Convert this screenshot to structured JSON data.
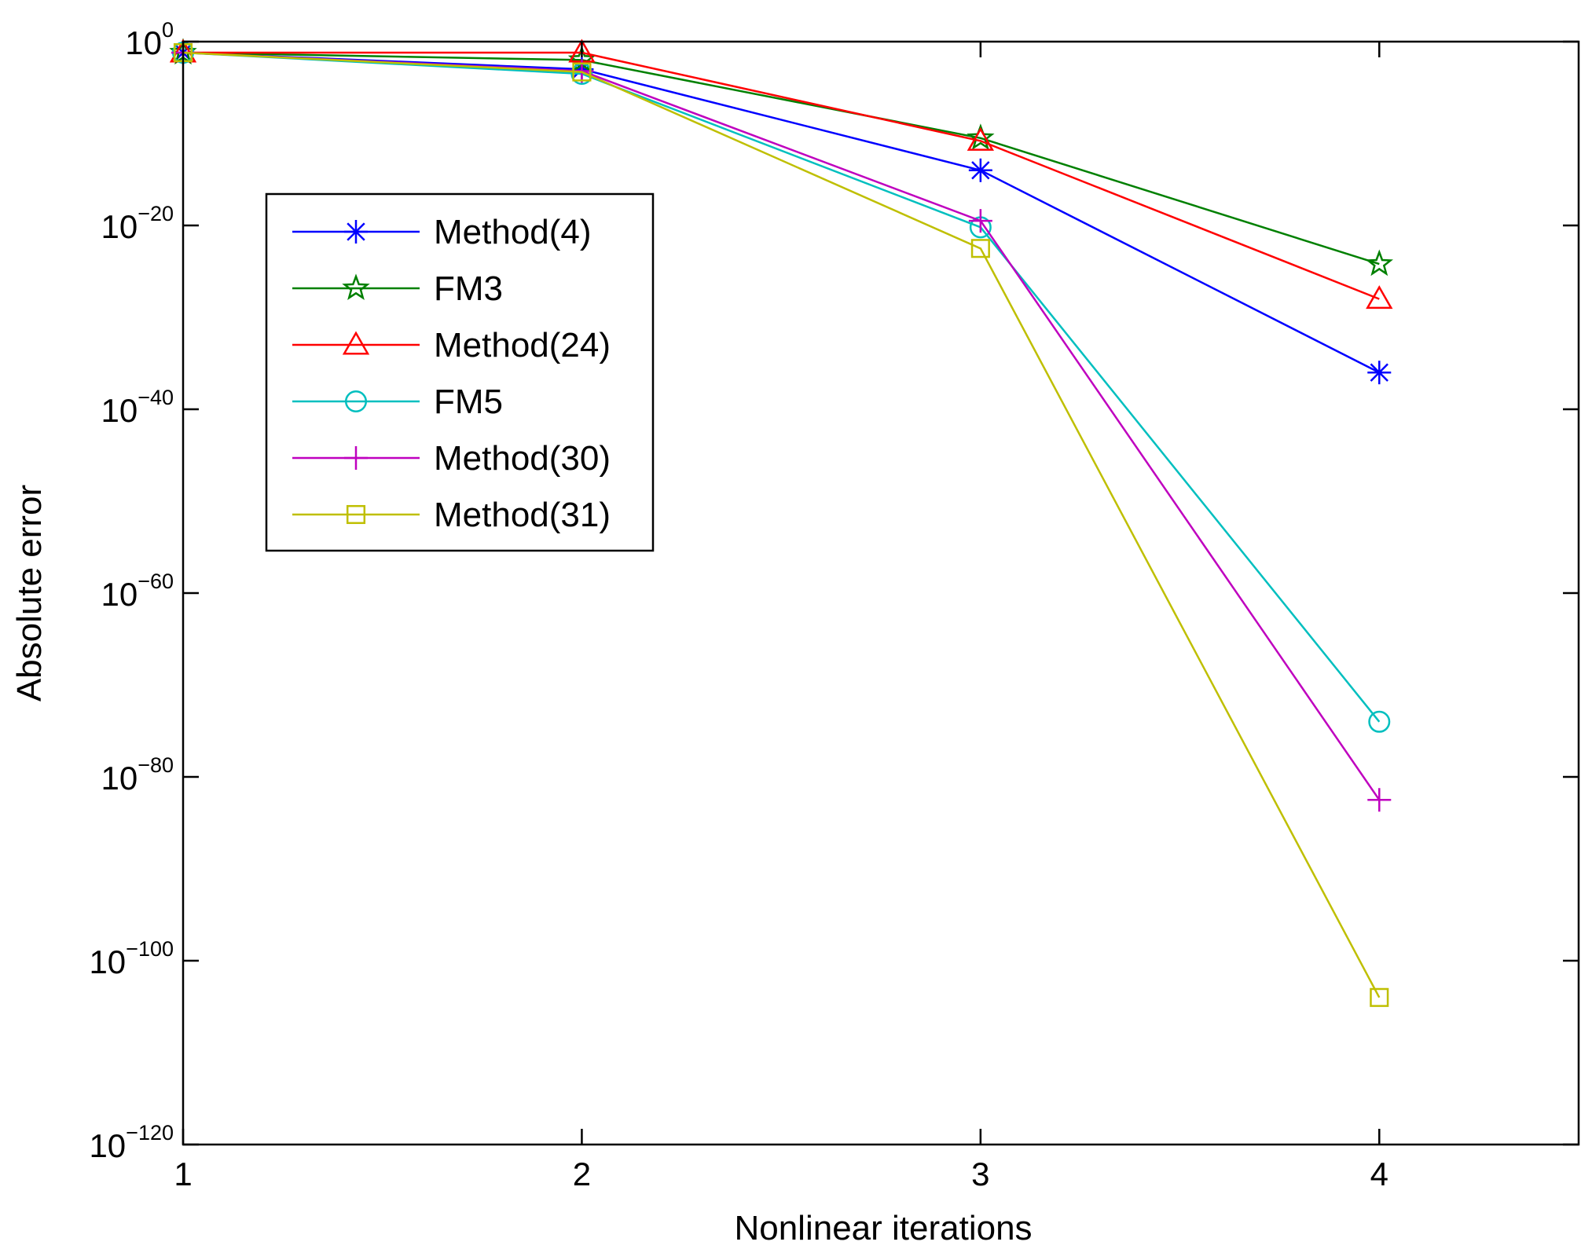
{
  "chart_data": {
    "type": "line",
    "title": "",
    "xlabel": "Nonlinear iterations",
    "ylabel": "Absolute error",
    "yscale": "log",
    "xlim": [
      1,
      4.5
    ],
    "ylim_exponent": [
      -120,
      0
    ],
    "x": [
      1,
      2,
      3,
      4
    ],
    "x_ticks": [
      {
        "value": 1,
        "label": "1"
      },
      {
        "value": 2,
        "label": "2"
      },
      {
        "value": 3,
        "label": "3"
      },
      {
        "value": 4,
        "label": "4"
      }
    ],
    "y_ticks": [
      {
        "exponent": 0,
        "base": "10",
        "exp_label": "0"
      },
      {
        "exponent": -20,
        "base": "10",
        "exp_label": "−20"
      },
      {
        "exponent": -40,
        "base": "10",
        "exp_label": "−40"
      },
      {
        "exponent": -60,
        "base": "10",
        "exp_label": "−60"
      },
      {
        "exponent": -80,
        "base": "10",
        "exp_label": "−80"
      },
      {
        "exponent": -100,
        "base": "10",
        "exp_label": "−100"
      },
      {
        "exponent": -120,
        "base": "10",
        "exp_label": "−120"
      }
    ],
    "legend_position": "upper-left",
    "grid": false,
    "series": [
      {
        "name": "Method(4)",
        "color": "#0000ff",
        "marker": "asterisk",
        "log10_values": [
          -1.2,
          -3.0,
          -14.0,
          -36.0
        ]
      },
      {
        "name": "FM3",
        "color": "#008000",
        "marker": "star",
        "log10_values": [
          -1.2,
          -2.0,
          -10.5,
          -24.2
        ]
      },
      {
        "name": "Method(24)",
        "color": "#ff0000",
        "marker": "triangle",
        "log10_values": [
          -1.2,
          -1.2,
          -10.8,
          -28.0
        ]
      },
      {
        "name": "FM5",
        "color": "#00bfbf",
        "marker": "circle",
        "log10_values": [
          -1.2,
          -3.5,
          -20.2,
          -74.0
        ]
      },
      {
        "name": "Method(30)",
        "color": "#bf00bf",
        "marker": "plus",
        "log10_values": [
          -1.2,
          -3.2,
          -19.5,
          -82.5
        ]
      },
      {
        "name": "Method(31)",
        "color": "#bfbf00",
        "marker": "square",
        "log10_values": [
          -1.2,
          -3.3,
          -22.5,
          -104.0
        ]
      }
    ]
  }
}
